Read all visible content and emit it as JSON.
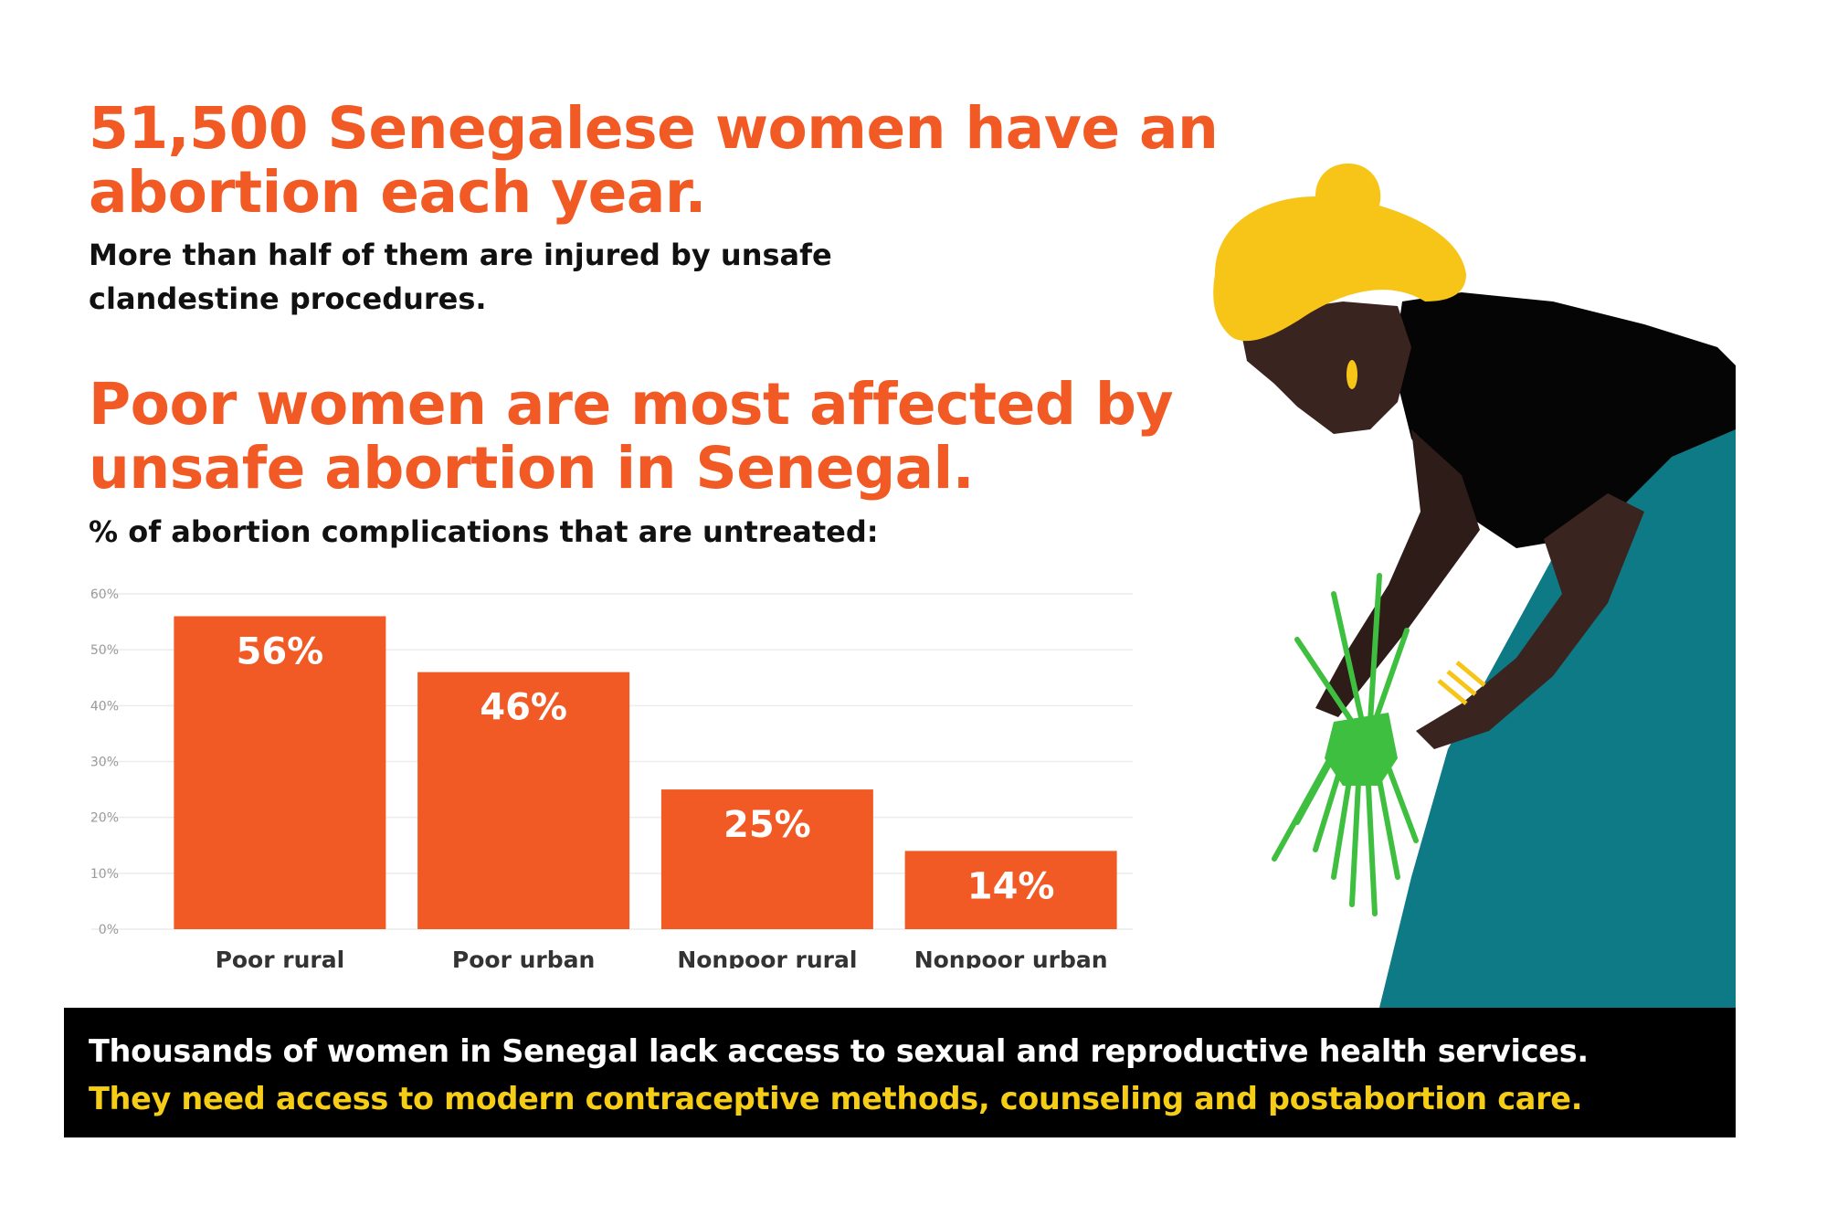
{
  "headline_1": "51,500 Senegalese women have an abortion each year.",
  "subtext_1": "More than half of them are injured by unsafe clandestine procedures.",
  "headline_2": "Poor women are most affected by unsafe abortion in Senegal.",
  "chart_label": "% of abortion complications that are untreated:",
  "chart_data": {
    "type": "bar",
    "title": "",
    "xlabel": "",
    "ylabel": "",
    "categories": [
      "Poor rural",
      "Poor urban",
      "Nonpoor rural",
      "Nonpoor urban"
    ],
    "values": [
      56,
      46,
      25,
      14
    ],
    "value_labels": [
      "56%",
      "46%",
      "25%",
      "14%"
    ],
    "ylim": [
      0,
      60
    ],
    "yticks": [
      0,
      10,
      20,
      30,
      40,
      50,
      60
    ],
    "ytick_labels": [
      "0%",
      "10%",
      "20%",
      "30%",
      "40%",
      "50%",
      "60%"
    ],
    "grid": true,
    "legend": "none",
    "bar_color": "#f15a24"
  },
  "banner": {
    "line_1": "Thousands of women in Senegal lack access to sexual and reproductive health services.",
    "line_2": "They need access to modern contraceptive methods, counseling and postabortion care."
  },
  "colors": {
    "accent_orange": "#f15a24",
    "banner_background": "#000000",
    "banner_highlight": "#f5cd17",
    "dress_teal": "#0e7a86",
    "headwrap_yellow": "#f7c518",
    "plant_green": "#3fbf3f"
  }
}
